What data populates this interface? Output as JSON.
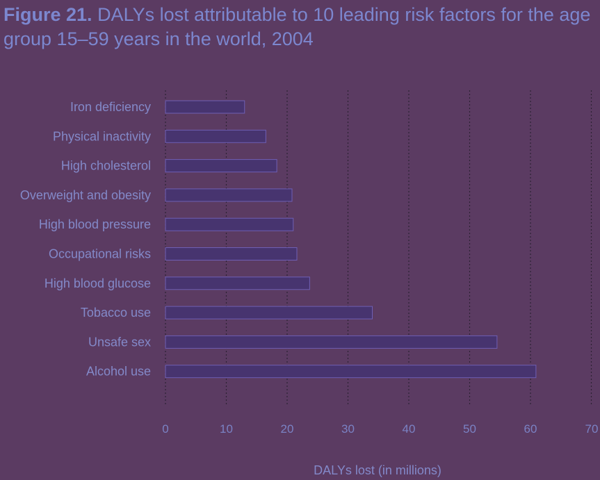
{
  "title": {
    "figure_label": "Figure 21.",
    "text": "DALYs lost attributable to 10 leading risk factors for the age group 15–59 years in the world, 2004"
  },
  "colors": {
    "background": "#5b3b62",
    "bar": "#47346f",
    "bar_highlight": "#6f5fb4",
    "grid": "#2c2233",
    "text": "#8389c9"
  },
  "chart_data": {
    "type": "bar",
    "orientation": "horizontal",
    "title": "DALYs lost attributable to 10 leading risk factors for the age group 15–59 years in the world, 2004",
    "xlabel": "DALYs lost (in millions)",
    "ylabel": "",
    "categories": [
      "Iron deficiency",
      "Physical inactivity",
      "High cholesterol",
      "Overweight and obesity",
      "High blood pressure",
      "Occupational risks",
      "High blood glucose",
      "Tobacco use",
      "Unsafe sex",
      "Alcohol use"
    ],
    "values": [
      13,
      16.5,
      18.3,
      20.8,
      21,
      21.6,
      23.7,
      34,
      54.5,
      60.9
    ],
    "xlim": [
      0,
      70
    ],
    "ticks": [
      0,
      10,
      20,
      30,
      40,
      50,
      60,
      70
    ],
    "grid": "vertical dotted"
  }
}
